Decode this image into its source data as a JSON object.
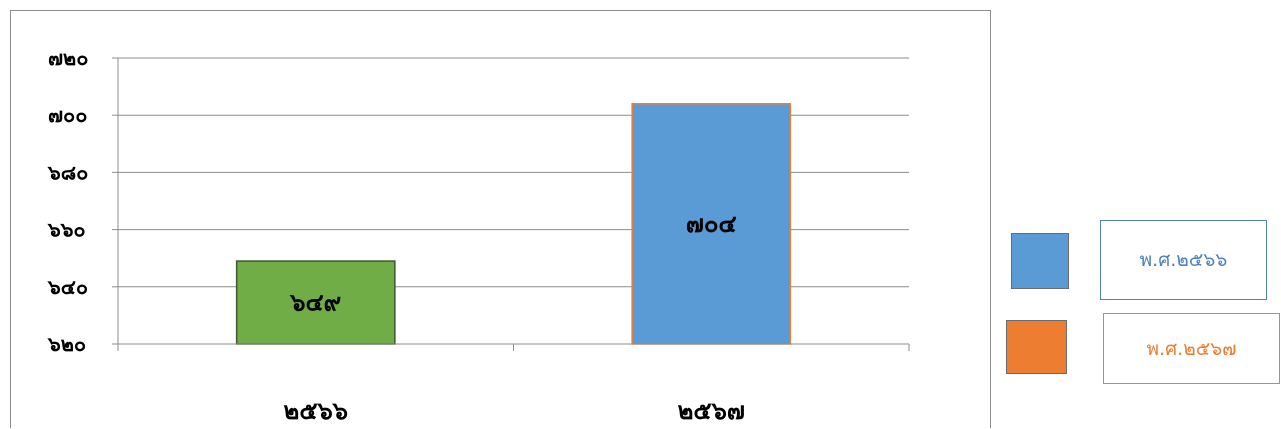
{
  "chart_data": {
    "type": "bar",
    "categories": [
      "๒๕๖๖",
      "๒๕๖๗"
    ],
    "values": [
      649,
      704
    ],
    "data_labels": [
      "๖๔๙",
      "๗๐๔"
    ],
    "bar_colors": [
      "#70ad47",
      "#5b9bd5"
    ],
    "bar_border_colors": [
      "#41542f",
      "#ed7d31"
    ],
    "ylim": [
      620,
      720
    ],
    "yticks": [
      620,
      640,
      660,
      680,
      700,
      720
    ],
    "ytick_labels": [
      "๖๒๐",
      "๖๔๐",
      "๖๖๐",
      "๖๘๐",
      "๗๐๐",
      "๗๒๐"
    ],
    "grid": true,
    "legend_position": "right",
    "legend": [
      {
        "label": "พ.ศ.๒๕๖๖",
        "color": "#5b9bd5"
      },
      {
        "label": "พ.ศ.๒๕๖๗",
        "color": "#ed7d31"
      }
    ]
  }
}
